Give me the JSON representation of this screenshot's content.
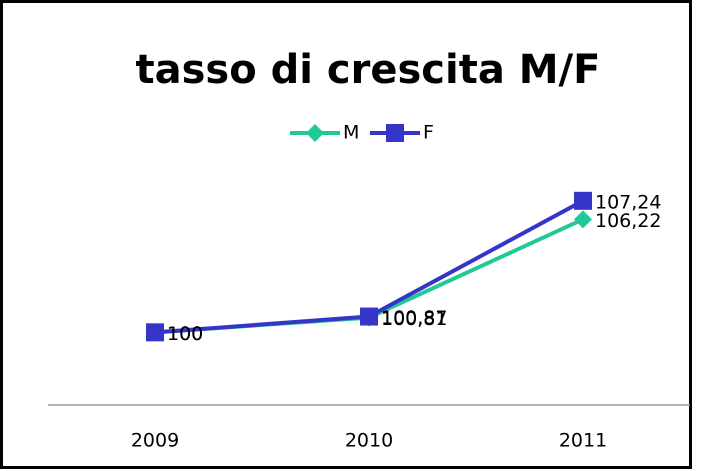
{
  "chart_data": {
    "type": "line",
    "title": "tasso di crescita M/F",
    "categories": [
      "2009",
      "2010",
      "2011"
    ],
    "series": [
      {
        "name": "M",
        "color": "#20c997",
        "marker": "diamond",
        "values": [
          100,
          100.81,
          106.22
        ],
        "value_labels": [
          "100",
          "100,81",
          "106,22"
        ]
      },
      {
        "name": "F",
        "color": "#3535c8",
        "marker": "square",
        "values": [
          100,
          100.87,
          107.24
        ],
        "value_labels": [
          "100",
          "100,87",
          "107,24"
        ]
      }
    ],
    "ylim": [
      96,
      108
    ],
    "legend": "top"
  }
}
